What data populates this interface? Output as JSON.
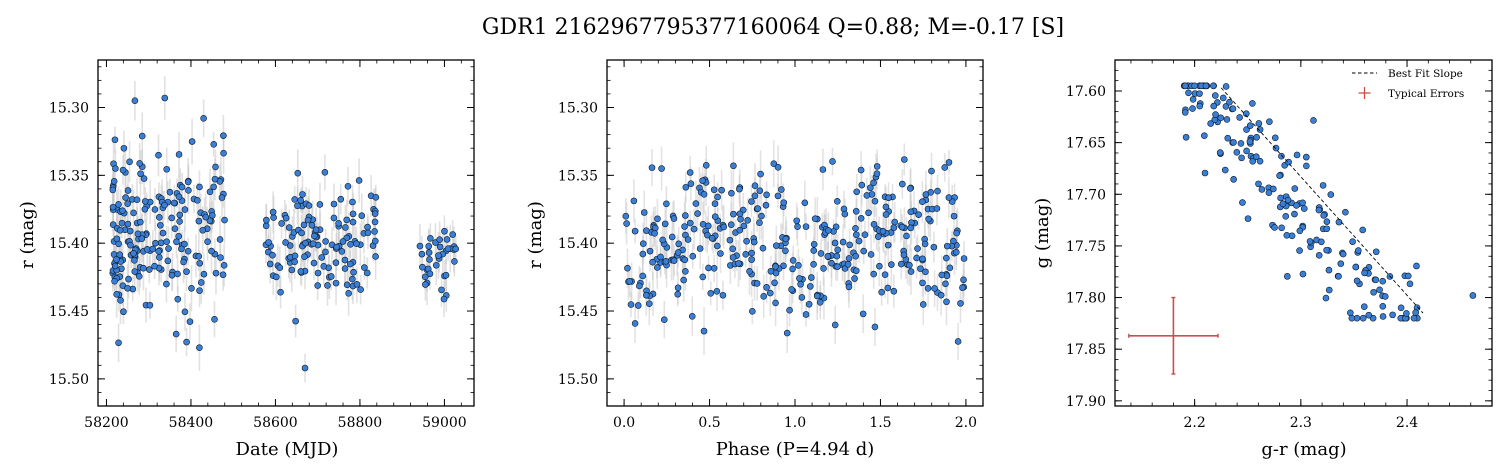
{
  "figure": {
    "suptitle": "GDR1 2162967795377160064  Q=0.88; M=-0.17 [S]"
  },
  "chart_data": [
    {
      "type": "scatter",
      "id": "lightcurve",
      "xlabel": "Date (MJD)",
      "ylabel": "r (mag)",
      "xlim": [
        58180,
        59070
      ],
      "ylim": [
        15.52,
        15.265
      ],
      "y_inverted": true,
      "xticks": [
        58200,
        58400,
        58600,
        58800,
        59000
      ],
      "yticks": [
        15.3,
        15.35,
        15.4,
        15.45,
        15.5
      ],
      "marker_color": "#3a7fd5",
      "errorbar_color": "#cccccc",
      "clusters": [
        {
          "x_range": [
            58215,
            58480
          ],
          "y_mean": 15.392,
          "y_sd": 0.032,
          "n": 200
        },
        {
          "x_range": [
            58575,
            58840
          ],
          "y_mean": 15.398,
          "y_sd": 0.022,
          "n": 130
        },
        {
          "x_range": [
            58940,
            59030
          ],
          "y_mean": 15.412,
          "y_sd": 0.014,
          "n": 35
        }
      ],
      "notable_points": [
        [
          58338,
          15.293
        ],
        [
          58670,
          15.492
        ],
        [
          58420,
          15.477
        ],
        [
          58430,
          15.308
        ],
        [
          58365,
          15.467
        ]
      ]
    },
    {
      "type": "scatter",
      "id": "phased",
      "xlabel": "Phase (P=4.94 d)",
      "ylabel": "r (mag)",
      "xlim": [
        -0.1,
        2.1
      ],
      "ylim": [
        15.52,
        15.265
      ],
      "y_inverted": true,
      "xticks": [
        0.0,
        0.5,
        1.0,
        1.5,
        2.0
      ],
      "xticklabels": [
        "0.0",
        "0.5",
        "1.0",
        "1.5",
        "2.0"
      ],
      "yticks": [
        15.3,
        15.35,
        15.4,
        15.45,
        15.5
      ],
      "period_days": 4.94,
      "model": {
        "mean": 15.4,
        "amplitude": 0.012,
        "peak_phase": 0.6,
        "scatter": 0.026
      },
      "n_points": 365,
      "marker_color": "#3a7fd5",
      "errorbar_color": "#cccccc"
    },
    {
      "type": "scatter",
      "id": "color_mag",
      "xlabel": "g-r (mag)",
      "ylabel": "g (mag)",
      "xlim": [
        2.125,
        2.48
      ],
      "ylim": [
        17.905,
        17.57
      ],
      "y_inverted": true,
      "xticks": [
        2.2,
        2.3,
        2.4
      ],
      "xticklabels": [
        "2.2",
        "2.3",
        "2.4"
      ],
      "yticks": [
        17.6,
        17.65,
        17.7,
        17.75,
        17.8,
        17.85,
        17.9
      ],
      "fit_line": {
        "x": [
          2.225,
          2.415
        ],
        "y": [
          17.597,
          17.815
        ]
      },
      "typical_error": {
        "x": 2.18,
        "y": 17.837,
        "xerr": 0.042,
        "yerr": 0.037
      },
      "points_model": {
        "slope": 1.147,
        "intercept_at_2_3": 17.713,
        "scatter": 0.03,
        "x_range": [
          2.19,
          2.41
        ],
        "n": 190
      },
      "notable_points": [
        [
          2.462,
          17.798
        ],
        [
          2.245,
          17.708
        ],
        [
          2.198,
          17.617
        ]
      ],
      "legend": {
        "placement": "top-right",
        "entries": [
          {
            "label": "Best Fit Slope",
            "style": "dashed-line",
            "color": "#000000"
          },
          {
            "label": "Typical Errors",
            "style": "errorbar",
            "color": "#c9504a"
          }
        ]
      },
      "marker_color": "#3a7fd5"
    }
  ]
}
